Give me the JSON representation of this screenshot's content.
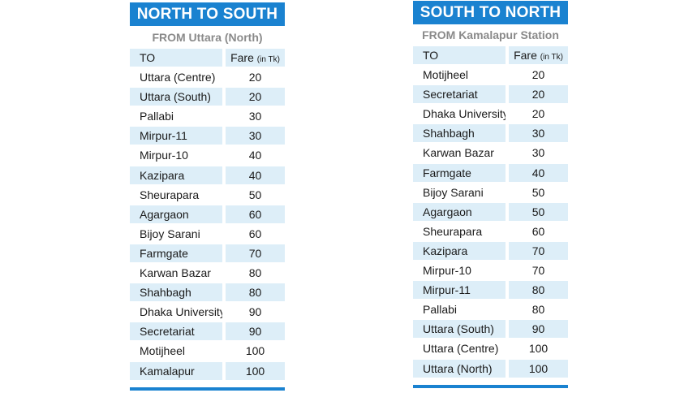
{
  "left": {
    "title": "NORTH TO SOUTH",
    "subtitle": "FROM Uttara (North)",
    "header": {
      "to": "TO",
      "fare": "Fare",
      "unit": "(in Tk)"
    },
    "rows": [
      {
        "to": "Uttara (Centre)",
        "fare": "20"
      },
      {
        "to": "Uttara (South)",
        "fare": "20"
      },
      {
        "to": "Pallabi",
        "fare": "30"
      },
      {
        "to": "Mirpur-11",
        "fare": "30"
      },
      {
        "to": "Mirpur-10",
        "fare": "40"
      },
      {
        "to": "Kazipara",
        "fare": "40"
      },
      {
        "to": "Sheurapara",
        "fare": "50"
      },
      {
        "to": "Agargaon",
        "fare": "60"
      },
      {
        "to": "Bijoy Sarani",
        "fare": "60"
      },
      {
        "to": "Farmgate",
        "fare": "70"
      },
      {
        "to": "Karwan Bazar",
        "fare": "80"
      },
      {
        "to": "Shahbagh",
        "fare": "80"
      },
      {
        "to": "Dhaka University",
        "fare": "90"
      },
      {
        "to": "Secretariat",
        "fare": "90"
      },
      {
        "to": "Motijheel",
        "fare": "100"
      },
      {
        "to": "Kamalapur",
        "fare": "100"
      }
    ]
  },
  "right": {
    "title": "SOUTH TO NORTH",
    "subtitle": "FROM Kamalapur Station",
    "header": {
      "to": "TO",
      "fare": "Fare",
      "unit": "(in Tk)"
    },
    "rows": [
      {
        "to": "Motijheel",
        "fare": "20"
      },
      {
        "to": "Secretariat",
        "fare": "20"
      },
      {
        "to": "Dhaka University",
        "fare": "20"
      },
      {
        "to": "Shahbagh",
        "fare": "30"
      },
      {
        "to": "Karwan Bazar",
        "fare": "30"
      },
      {
        "to": "Farmgate",
        "fare": "40"
      },
      {
        "to": "Bijoy Sarani",
        "fare": "50"
      },
      {
        "to": "Agargaon",
        "fare": "50"
      },
      {
        "to": "Sheurapara",
        "fare": "60"
      },
      {
        "to": "Kazipara",
        "fare": "70"
      },
      {
        "to": "Mirpur-10",
        "fare": "70"
      },
      {
        "to": "Mirpur-11",
        "fare": "80"
      },
      {
        "to": "Pallabi",
        "fare": "80"
      },
      {
        "to": "Uttara (South)",
        "fare": "90"
      },
      {
        "to": "Uttara (Centre)",
        "fare": "100"
      },
      {
        "to": "Uttara (North)",
        "fare": "100"
      }
    ]
  },
  "colors": {
    "banner": "#1a82d0",
    "row_shade": "#ddeef8",
    "subtitle": "#8a8a8a"
  }
}
